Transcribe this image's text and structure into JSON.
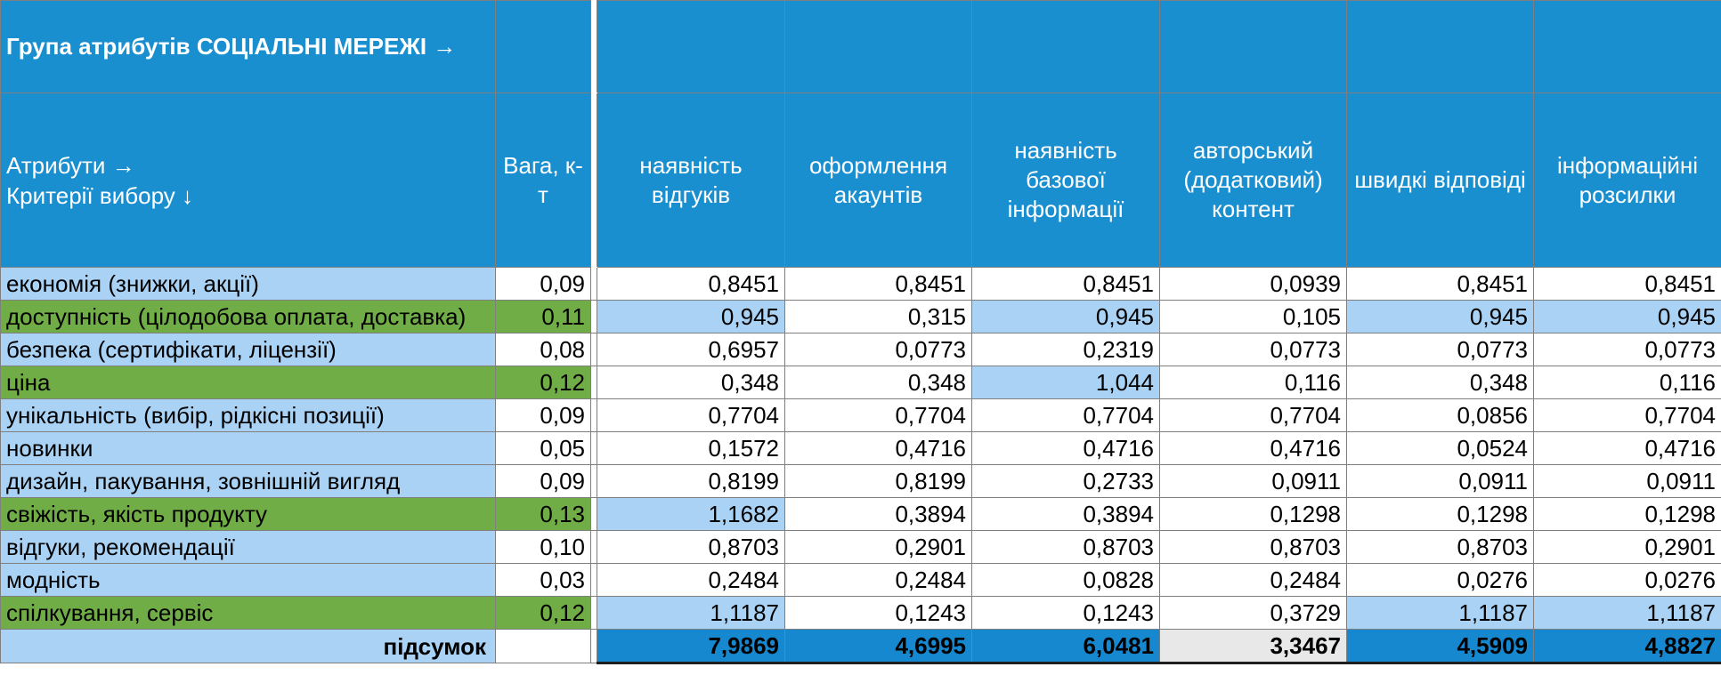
{
  "group_title": "Група атрибутів СОЦІАЛЬНІ МЕРЕЖІ →",
  "header": {
    "attributes_label": "Атрибути →",
    "criteria_label": "Критерії вибору ↓",
    "weight_label": "Вага, к-т",
    "columns": [
      "наявність відгуків",
      "оформлення акаунтів",
      "наявність базової інформації",
      "авторський (додатковий) контент",
      "швидкі відповіді",
      "інформаційні розсилки"
    ]
  },
  "rows": [
    {
      "criterion": "економія (знижки, акції)",
      "weight": "0,09",
      "values": [
        "0,8451",
        "0,8451",
        "0,8451",
        "0,0939",
        "0,8451",
        "0,8451"
      ]
    },
    {
      "criterion": "доступність (цілодобова оплата, доставка)",
      "weight": "0,11",
      "values": [
        "0,945",
        "0,315",
        "0,945",
        "0,105",
        "0,945",
        "0,945"
      ]
    },
    {
      "criterion": "безпека (сертифікати, ліцензії)",
      "weight": "0,08",
      "values": [
        "0,6957",
        "0,0773",
        "0,2319",
        "0,0773",
        "0,0773",
        "0,0773"
      ]
    },
    {
      "criterion": "ціна",
      "weight": "0,12",
      "values": [
        "0,348",
        "0,348",
        "1,044",
        "0,116",
        "0,348",
        "0,116"
      ]
    },
    {
      "criterion": "унікальність (вибір, рідкісні позиції)",
      "weight": "0,09",
      "values": [
        "0,7704",
        "0,7704",
        "0,7704",
        "0,7704",
        "0,0856",
        "0,7704"
      ]
    },
    {
      "criterion": "новинки",
      "weight": "0,05",
      "values": [
        "0,1572",
        "0,4716",
        "0,4716",
        "0,4716",
        "0,0524",
        "0,4716"
      ]
    },
    {
      "criterion": "дизайн, пакування, зовнішній вигляд",
      "weight": "0,09",
      "values": [
        "0,8199",
        "0,8199",
        "0,2733",
        "0,0911",
        "0,0911",
        "0,0911"
      ]
    },
    {
      "criterion": "свіжість, якість продукту",
      "weight": "0,13",
      "values": [
        "1,1682",
        "0,3894",
        "0,3894",
        "0,1298",
        "0,1298",
        "0,1298"
      ]
    },
    {
      "criterion": "відгуки, рекомендації",
      "weight": "0,10",
      "values": [
        "0,8703",
        "0,2901",
        "0,8703",
        "0,8703",
        "0,8703",
        "0,2901"
      ]
    },
    {
      "criterion": "модність",
      "weight": "0,03",
      "values": [
        "0,2484",
        "0,2484",
        "0,0828",
        "0,2484",
        "0,0276",
        "0,0276"
      ]
    },
    {
      "criterion": "спілкування, сервіс",
      "weight": "0,12",
      "values": [
        "1,1187",
        "0,1243",
        "0,1243",
        "0,3729",
        "1,1187",
        "1,1187"
      ]
    }
  ],
  "total": {
    "label": "підсумок",
    "values": [
      "7,9869",
      "4,6995",
      "6,0481",
      "3,3467",
      "4,5909",
      "4,8827"
    ]
  },
  "colors": {
    "header_blue": "#1a8fd0",
    "light_blue": "#a9d2f4",
    "green": "#70ad47",
    "total_blue": "#1588d0",
    "total_gray": "#e8e8e8"
  }
}
